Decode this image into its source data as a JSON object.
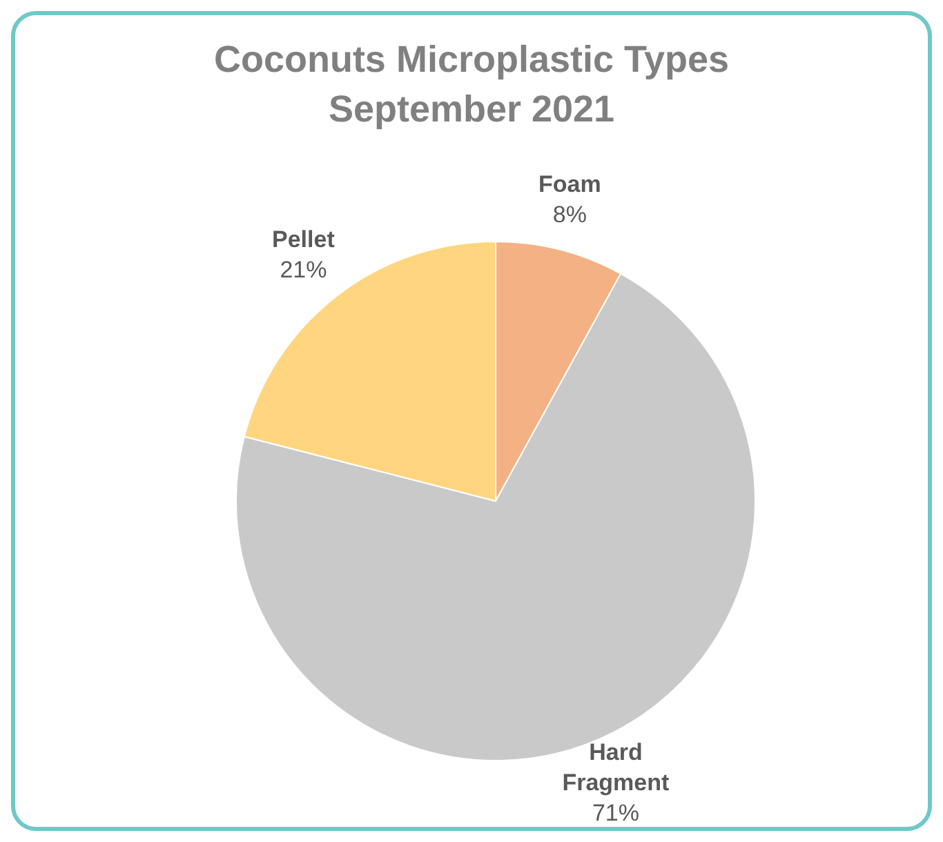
{
  "chart_data": {
    "type": "pie",
    "title": "Coconuts Microplastic Types\nSeptember 2021",
    "categories": [
      "Foam",
      "Hard Fragment",
      "Pellet"
    ],
    "values": [
      8,
      71,
      21
    ],
    "colors": [
      "#f4b183",
      "#c9c9c9",
      "#ffd67f"
    ],
    "value_labels": [
      "8%",
      "71%",
      "21%"
    ],
    "legend": false
  }
}
